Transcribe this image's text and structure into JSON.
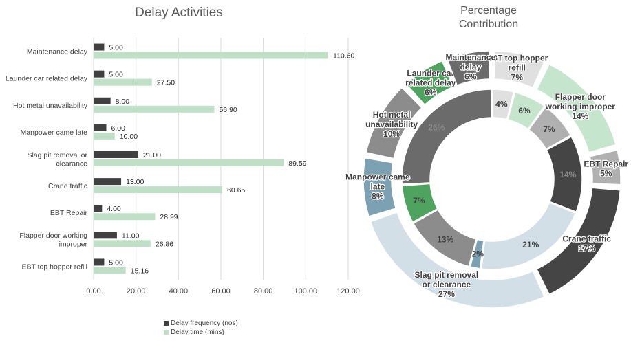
{
  "colors": {
    "frequency": "#404040",
    "time": "#bfe0c6",
    "axis_text": "#404040",
    "grid": "#d9d9d9"
  },
  "chart_data": [
    {
      "type": "bar",
      "orientation": "horizontal",
      "title": "Delay Activities",
      "categories": [
        "Maintenance delay",
        "Launder car related delay",
        "Hot metal unavailability",
        "Manpower came late",
        "Slag pit removal or clearance",
        "Crane traffic",
        "EBT Repair",
        "Flapper door working improper",
        "EBT top hopper refill"
      ],
      "category_lines": [
        [
          "Maintenance delay"
        ],
        [
          "Launder car related delay"
        ],
        [
          "Hot metal unavailability"
        ],
        [
          "Manpower came late"
        ],
        [
          "Slag pit removal or",
          "clearance"
        ],
        [
          "Crane traffic"
        ],
        [
          "EBT Repair"
        ],
        [
          "Flapper door working",
          "improper"
        ],
        [
          "EBT top hopper refill"
        ]
      ],
      "series": [
        {
          "name": "Delay frequency (nos)",
          "values": [
            5.0,
            5.0,
            8.0,
            6.0,
            21.0,
            13.0,
            4.0,
            11.0,
            5.0
          ],
          "labels": [
            "5.00",
            "5.00",
            "8.00",
            "6.00",
            "21.00",
            "13.00",
            "4.00",
            "11.00",
            "5.00"
          ]
        },
        {
          "name": "Delay time (mins)",
          "values": [
            110.6,
            27.5,
            56.9,
            10.0,
            89.59,
            60.65,
            28.99,
            26.86,
            15.16
          ],
          "labels": [
            "110.60",
            "27.50",
            "56.90",
            "10.00",
            "89.59",
            "60.65",
            "28.99",
            "26.86",
            "15.16"
          ]
        }
      ],
      "xlim": [
        0,
        120
      ],
      "xticks": [
        0,
        20,
        40,
        60,
        80,
        100,
        120
      ],
      "xtick_labels": [
        "0.00",
        "20.00",
        "40.00",
        "60.00",
        "80.00",
        "100.00",
        "120.00"
      ],
      "grid": true,
      "legend": "bottom"
    },
    {
      "type": "pie",
      "subtype": "double-donut",
      "title": "Percentage Contribution",
      "title_lines": [
        "Percentage",
        "Contribution"
      ],
      "categories": [
        "EBT top hopper refill",
        "Flapper door working improper",
        "EBT Repair",
        "Crane traffic",
        "Slag pit removal or clearance",
        "Manpower came late",
        "Hot metal unavailability",
        "Launder car related delay",
        "Maintenance delay"
      ],
      "inner": {
        "values": [
          4,
          6,
          7,
          14,
          21,
          2,
          13,
          7,
          26
        ],
        "labels": [
          "4%",
          "6%",
          "7%",
          "14%",
          "21%",
          "2%",
          "13%",
          "7%",
          "26%"
        ]
      },
      "outer": {
        "values": [
          7,
          14,
          5,
          17,
          27,
          8,
          10,
          6,
          6
        ],
        "labels": [
          [
            "EBT top hopper",
            "refill",
            "7%"
          ],
          [
            "Flapper door",
            "working improper",
            "14%"
          ],
          [
            "EBT Repair",
            "5%"
          ],
          [
            "Crane traffic",
            "17%"
          ],
          [
            "Slag pit removal",
            "or clearance",
            "27%"
          ],
          [
            "Manpower came",
            "late",
            "8%"
          ],
          [
            "Hot metal",
            "unavailability",
            "10%"
          ],
          [
            "Launder car",
            "related delay",
            "6%"
          ],
          [
            "Maintenance",
            "delay",
            "6%"
          ]
        ]
      },
      "colors": [
        "#e0e0e0",
        "#c5e6cc",
        "#b0b0b0",
        "#454545",
        "#d2dfe6",
        "#7ba1b3",
        "#8c8c8c",
        "#4ea35f",
        "#6b6b6b"
      ]
    }
  ]
}
